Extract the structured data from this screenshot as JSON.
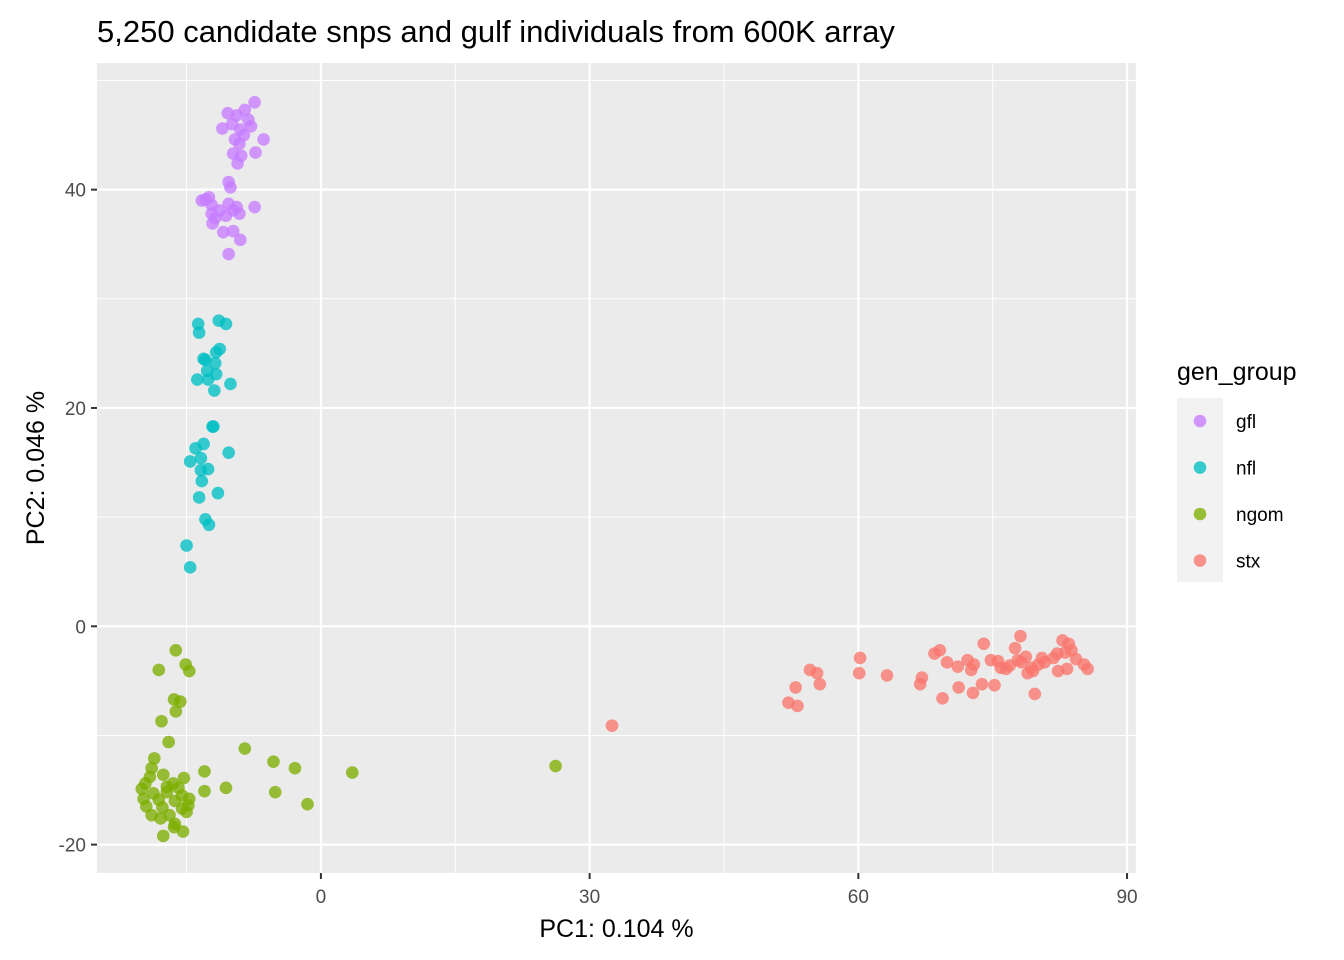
{
  "chart_data": {
    "type": "scatter",
    "title": "5,250 candidate snps and gulf individuals from 600K array",
    "xlabel": "PC1: 0.104 %",
    "ylabel": "PC2: 0.046 %",
    "xlim": [
      -25,
      91
    ],
    "ylim": [
      -22.6,
      51.6
    ],
    "x_ticks": [
      0,
      30,
      60,
      90
    ],
    "y_ticks": [
      -20,
      0,
      20,
      40
    ],
    "x_tick_labels": [
      "0",
      "30",
      "60",
      "90"
    ],
    "y_tick_labels": [
      "-20",
      "0",
      "20",
      "40"
    ],
    "grid": true,
    "background": "#ebebeb",
    "legend": {
      "title": "gen_group",
      "placement": "right"
    },
    "series": [
      {
        "name": "gfl",
        "color": "#c77cff",
        "points": [
          [
            -7.4,
            48
          ],
          [
            -8.5,
            47.3
          ],
          [
            -10.4,
            47
          ],
          [
            -9.4,
            46.8
          ],
          [
            -8.1,
            46.4
          ],
          [
            -9.9,
            46
          ],
          [
            -11,
            45.6
          ],
          [
            -9,
            45.5
          ],
          [
            -7.8,
            45.8
          ],
          [
            -8.6,
            45
          ],
          [
            -9.6,
            44.6
          ],
          [
            -6.4,
            44.6
          ],
          [
            -9.1,
            44.2
          ],
          [
            -7.3,
            43.4
          ],
          [
            -9.8,
            43.3
          ],
          [
            -8.9,
            43.1
          ],
          [
            -9.3,
            42.4
          ],
          [
            -10.3,
            40.7
          ],
          [
            -10.1,
            40.2
          ],
          [
            -12.5,
            39.3
          ],
          [
            -12.9,
            39.1
          ],
          [
            -13.3,
            39
          ],
          [
            -12.2,
            38.6
          ],
          [
            -10.3,
            38.7
          ],
          [
            -9.4,
            38.4
          ],
          [
            -7.4,
            38.4
          ],
          [
            -9.8,
            38.1
          ],
          [
            -11.3,
            38.1
          ],
          [
            -12.2,
            37.8
          ],
          [
            -10.6,
            37.6
          ],
          [
            -9.1,
            37.8
          ],
          [
            -11.8,
            37.4
          ],
          [
            -12.1,
            36.9
          ],
          [
            -10.9,
            36.1
          ],
          [
            -9.8,
            36.2
          ],
          [
            -9,
            35.4
          ],
          [
            -10.3,
            34.1
          ]
        ]
      },
      {
        "name": "nfl",
        "color": "#00bfc4",
        "points": [
          [
            -11.4,
            28
          ],
          [
            -10.6,
            27.7
          ],
          [
            -13.7,
            27.7
          ],
          [
            -13.6,
            26.9
          ],
          [
            -11.3,
            25.4
          ],
          [
            -11.7,
            25.1
          ],
          [
            -13.1,
            24.5
          ],
          [
            -12.9,
            24.4
          ],
          [
            -11.8,
            24.1
          ],
          [
            -12.7,
            23.4
          ],
          [
            -11.7,
            23.1
          ],
          [
            -13.8,
            22.6
          ],
          [
            -12.6,
            22.6
          ],
          [
            -10.1,
            22.2
          ],
          [
            -11.9,
            21.6
          ],
          [
            -12,
            18.3
          ],
          [
            -12.1,
            18.3
          ],
          [
            -13.1,
            16.7
          ],
          [
            -14,
            16.3
          ],
          [
            -10.3,
            15.9
          ],
          [
            -13.4,
            15.4
          ],
          [
            -14.6,
            15.1
          ],
          [
            -12.6,
            14.4
          ],
          [
            -13.4,
            14.3
          ],
          [
            -13.3,
            13.3
          ],
          [
            -11.5,
            12.2
          ],
          [
            -13.6,
            11.8
          ],
          [
            -12.9,
            9.8
          ],
          [
            -12.5,
            9.3
          ],
          [
            -15,
            7.4
          ],
          [
            -14.6,
            5.4
          ]
        ]
      },
      {
        "name": "ngom",
        "color": "#7cae00",
        "points": [
          [
            -16.2,
            -2.2
          ],
          [
            -18.1,
            -4
          ],
          [
            -15.1,
            -3.5
          ],
          [
            -14.7,
            -4.1
          ],
          [
            -16.4,
            -6.7
          ],
          [
            -15.7,
            -6.9
          ],
          [
            -16.2,
            -7.8
          ],
          [
            -17.8,
            -8.7
          ],
          [
            -17,
            -10.6
          ],
          [
            -8.5,
            -11.2
          ],
          [
            -18.6,
            -12.1
          ],
          [
            -5.3,
            -12.4
          ],
          [
            -2.9,
            -13
          ],
          [
            3.5,
            -13.4
          ],
          [
            -13,
            -13.3
          ],
          [
            26.2,
            -12.8
          ],
          [
            -18.9,
            -13
          ],
          [
            -19.1,
            -13.8
          ],
          [
            -17.6,
            -13.6
          ],
          [
            -15.3,
            -13.9
          ],
          [
            -16.5,
            -14.4
          ],
          [
            -19.6,
            -14.4
          ],
          [
            -17.2,
            -14.7
          ],
          [
            -15.9,
            -14.8
          ],
          [
            -10.6,
            -14.8
          ],
          [
            -20,
            -14.9
          ],
          [
            -18.7,
            -15.3
          ],
          [
            -17.2,
            -15.2
          ],
          [
            -15.5,
            -15.5
          ],
          [
            -13,
            -15.1
          ],
          [
            -5.1,
            -15.2
          ],
          [
            -19.8,
            -15.8
          ],
          [
            -18.1,
            -15.9
          ],
          [
            -16.3,
            -16
          ],
          [
            -14.7,
            -15.8
          ],
          [
            -19.5,
            -16.5
          ],
          [
            -17.7,
            -16.6
          ],
          [
            -15.5,
            -16.7
          ],
          [
            -1.5,
            -16.3
          ],
          [
            -18.9,
            -17.3
          ],
          [
            -16.9,
            -17.3
          ],
          [
            -15,
            -17
          ],
          [
            -16.3,
            -18.1
          ],
          [
            -16.4,
            -18.4
          ],
          [
            -15.4,
            -18.8
          ],
          [
            -17.6,
            -19.2
          ],
          [
            -17.9,
            -17.6
          ],
          [
            -14.8,
            -16.4
          ]
        ]
      },
      {
        "name": "stx",
        "color": "#f8766d",
        "points": [
          [
            32.5,
            -9.1
          ],
          [
            52.2,
            -7
          ],
          [
            53.2,
            -7.3
          ],
          [
            53,
            -5.6
          ],
          [
            54.6,
            -4
          ],
          [
            55.4,
            -4.3
          ],
          [
            55.7,
            -5.3
          ],
          [
            60.2,
            -2.9
          ],
          [
            60.1,
            -4.3
          ],
          [
            63.2,
            -4.5
          ],
          [
            66.9,
            -5.3
          ],
          [
            67.1,
            -4.7
          ],
          [
            68.5,
            -2.5
          ],
          [
            69.1,
            -2.2
          ],
          [
            69.4,
            -6.6
          ],
          [
            69.9,
            -3.3
          ],
          [
            71.1,
            -3.7
          ],
          [
            71.2,
            -5.6
          ],
          [
            72.2,
            -3.1
          ],
          [
            72.6,
            -4
          ],
          [
            72.8,
            -6.1
          ],
          [
            72.9,
            -3.5
          ],
          [
            73.8,
            -5.3
          ],
          [
            74,
            -1.6
          ],
          [
            74.8,
            -3.1
          ],
          [
            75.2,
            -5.4
          ],
          [
            75.6,
            -3.2
          ],
          [
            75.9,
            -3.8
          ],
          [
            76.5,
            -3.9
          ],
          [
            76.9,
            -3.6
          ],
          [
            77.5,
            -2
          ],
          [
            77.8,
            -3.1
          ],
          [
            78.1,
            -0.9
          ],
          [
            78.2,
            -3.3
          ],
          [
            78.7,
            -2.8
          ],
          [
            78.9,
            -4.3
          ],
          [
            79.3,
            -3.8
          ],
          [
            79.5,
            -4.1
          ],
          [
            79.7,
            -6.2
          ],
          [
            80.1,
            -3.5
          ],
          [
            80.5,
            -2.9
          ],
          [
            80.8,
            -3.3
          ],
          [
            81.8,
            -2.9
          ],
          [
            82.2,
            -2.5
          ],
          [
            82.3,
            -4.1
          ],
          [
            82.8,
            -1.3
          ],
          [
            83.1,
            -2.4
          ],
          [
            83.3,
            -3.9
          ],
          [
            83.5,
            -1.6
          ],
          [
            83.8,
            -2.2
          ],
          [
            84.3,
            -3
          ],
          [
            85.2,
            -3.5
          ],
          [
            85.6,
            -3.9
          ]
        ]
      }
    ]
  }
}
